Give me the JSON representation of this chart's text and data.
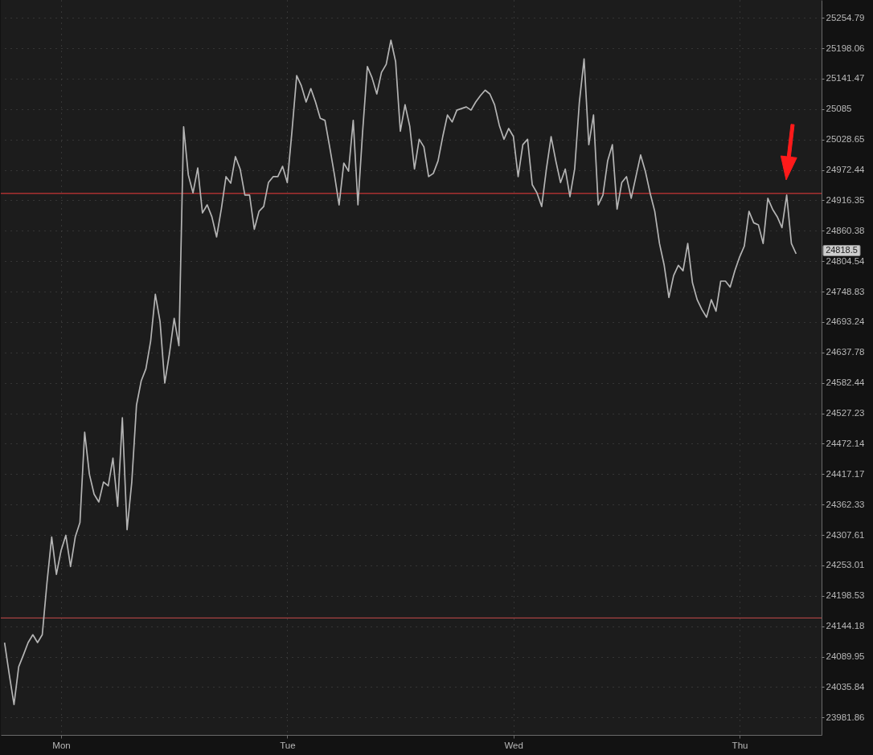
{
  "chart_data": {
    "type": "line",
    "categories": [
      null,
      null,
      null,
      null,
      null,
      null,
      null,
      null,
      null,
      null,
      null,
      null,
      "Mon",
      null,
      null,
      null,
      null,
      null,
      null,
      null,
      null,
      null,
      null,
      null,
      null,
      null,
      null,
      null,
      null,
      null,
      null,
      null,
      null,
      null,
      null,
      null,
      null,
      null,
      null,
      null,
      null,
      null,
      null,
      null,
      null,
      null,
      null,
      null,
      null,
      null,
      null,
      null,
      null,
      null,
      null,
      null,
      null,
      null,
      null,
      null,
      "Tue",
      null,
      null,
      null,
      null,
      null,
      null,
      null,
      null,
      null,
      null,
      null,
      null,
      null,
      null,
      null,
      null,
      null,
      null,
      null,
      null,
      null,
      null,
      null,
      null,
      null,
      null,
      null,
      null,
      null,
      null,
      null,
      null,
      null,
      null,
      null,
      null,
      null,
      null,
      null,
      null,
      null,
      null,
      null,
      null,
      null,
      null,
      null,
      "Wed",
      null,
      null,
      null,
      null,
      null,
      null,
      null,
      null,
      null,
      null,
      null,
      null,
      null,
      null,
      null,
      null,
      null,
      null,
      null,
      null,
      null,
      null,
      null,
      null,
      null,
      null,
      null,
      null,
      null,
      null,
      null,
      null,
      null,
      null,
      null,
      null,
      null,
      null,
      null,
      null,
      null,
      null,
      null,
      null,
      null,
      null,
      null,
      "Thu",
      null,
      null,
      null,
      null,
      null,
      null,
      null,
      null,
      null,
      null,
      null,
      null
    ],
    "series": [
      {
        "color": "#b4b4b4",
        "values": [
          24115,
          24058,
          24005,
          24072,
          24093,
          24115,
          24129,
          24115,
          24129,
          24222,
          24304,
          24237,
          24280,
          24307,
          24251,
          24304,
          24330,
          24493,
          24417,
          24381,
          24367,
          24403,
          24396,
          24446,
          24359,
          24519,
          24317,
          24403,
          24542,
          24586,
          24608,
          24658,
          24744,
          24694,
          24582,
          24636,
          24700,
          24650,
          25052,
          24963,
          24930,
          24976,
          24893,
          24908,
          24886,
          24849,
          24900,
          24960,
          24948,
          24997,
          24974,
          24926,
          24926,
          24863,
          24896,
          24905,
          24949,
          24960,
          24960,
          24979,
          24949,
          25044,
          25147,
          25128,
          25098,
          25123,
          25098,
          25068,
          25064,
          25015,
          24964,
          24908,
          24985,
          24970,
          25064,
          24908,
          25044,
          25164,
          25143,
          25113,
          25153,
          25168,
          25213,
          25173,
          25044,
          25093,
          25053,
          24974,
          25029,
          25015,
          24960,
          24966,
          24989,
          25034,
          25074,
          25061,
          25083,
          25086,
          25089,
          25083,
          25098,
          25110,
          25120,
          25113,
          25093,
          25055,
          25029,
          25049,
          25034,
          24960,
          25019,
          25029,
          24945,
          24930,
          24905,
          24974,
          25034,
          24989,
          24949,
          24974,
          24923,
          24974,
          25098,
          25178,
          25019,
          25074,
          24908,
          24926,
          24989,
          25019,
          24900,
          24949,
          24960,
          24920,
          24960,
          25000,
          24970,
          24930,
          24896,
          24837,
          24797,
          24738,
          24778,
          24797,
          24787,
          24837,
          24765,
          24734,
          24716,
          24702,
          24734,
          24713,
          24768,
          24768,
          24757,
          24787,
          24812,
          24832,
          24896,
          24875,
          24871,
          24837,
          24920,
          24900,
          24886,
          24866,
          24926,
          24837,
          24818
        ]
      }
    ],
    "ylim": [
      23951,
      25288
    ],
    "yticks": [
      25254.79,
      25198.06,
      25141.47,
      25085,
      25028.65,
      24972.44,
      24916.35,
      24860.38,
      24804.54,
      24748.83,
      24693.24,
      24637.78,
      24582.44,
      24527.23,
      24472.14,
      24417.17,
      24362.33,
      24307.61,
      24253.01,
      24198.53,
      24144.18,
      24089.95,
      24035.84,
      23981.86
    ],
    "log": "y",
    "grid": true,
    "ref_lines": [
      {
        "axis": "y",
        "value": 24929,
        "color": "#f03a3a"
      },
      {
        "axis": "y",
        "value": 24159,
        "color": "#c94c4c"
      }
    ],
    "annotations": [
      "24818.5"
    ]
  }
}
